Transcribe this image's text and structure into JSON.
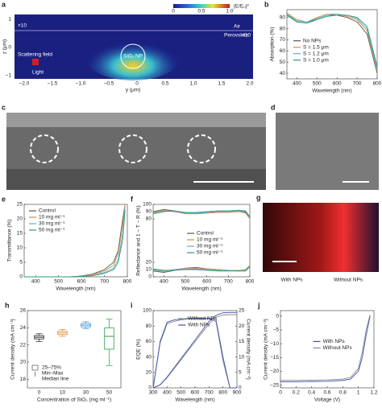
{
  "images": [
    {
      "panel": "a",
      "colorbar_label": "|E/E₀|²",
      "colorbar_ticks": [
        "0",
        "0.5",
        "1.0"
      ],
      "labels": [
        "Air",
        "Perovskite",
        "×10",
        "×10",
        "SiO₂ NP",
        "Scattering field",
        "Light"
      ],
      "xlabel": "y (μm)",
      "ylabel": "z (μm)",
      "xticks": [
        "−2.0",
        "−1.5",
        "−1.0",
        "−0.5",
        "0",
        "0.5",
        "1.0",
        "1.5",
        "2.0"
      ],
      "yticks": [
        "1",
        "0",
        "−1"
      ]
    },
    {
      "panel": "c"
    },
    {
      "panel": "d"
    },
    {
      "panel": "g",
      "labels": [
        "With NPs",
        "Without NPs"
      ]
    }
  ],
  "chart_data": [
    {
      "type": "line",
      "panel": "b",
      "xlabel": "Wavelength (nm)",
      "ylabel": "Absorption (%)",
      "x": [
        350,
        400,
        450,
        500,
        550,
        600,
        650,
        700,
        750,
        800
      ],
      "xlim": [
        350,
        800
      ],
      "xticks": [
        400,
        500,
        600,
        700,
        800
      ],
      "ylim": [
        35,
        97
      ],
      "yticks": [
        40,
        50,
        60,
        70,
        80,
        90
      ],
      "legend": "center-left",
      "series": [
        {
          "name": "No NPs",
          "color": "#555555",
          "values": [
            93,
            86,
            85,
            89,
            92,
            92,
            90,
            86,
            75,
            40
          ]
        },
        {
          "name": "S = 1.5 μm",
          "color": "#e08a3c",
          "values": [
            94,
            88,
            86,
            90,
            93,
            93,
            91,
            88,
            78,
            42
          ]
        },
        {
          "name": "S = 1.2 μm",
          "color": "#5ab0d8",
          "values": [
            93,
            87,
            86,
            89,
            92,
            93,
            92,
            89,
            80,
            44
          ]
        },
        {
          "name": "S = 1.0 μm",
          "color": "#2a9d6f",
          "values": [
            92,
            86,
            85,
            88,
            91,
            92,
            92,
            90,
            82,
            46
          ]
        }
      ]
    },
    {
      "type": "line",
      "panel": "e",
      "xlabel": "Wavelength (nm)",
      "ylabel": "Transmittance (%)",
      "x": [
        350,
        450,
        550,
        600,
        650,
        700,
        740,
        760,
        780,
        790
      ],
      "xlim": [
        350,
        800
      ],
      "xticks": [
        400,
        500,
        600,
        700,
        800
      ],
      "ylim": [
        0,
        25
      ],
      "yticks": [
        0,
        5,
        10,
        15,
        20,
        25
      ],
      "legend": "top-left",
      "series": [
        {
          "name": "Control",
          "color": "#555555",
          "values": [
            0,
            0,
            0,
            0.3,
            1,
            2.5,
            5,
            9,
            20,
            25
          ]
        },
        {
          "name": "10 mg ml⁻¹",
          "color": "#e08a3c",
          "values": [
            0,
            0,
            0,
            0.2,
            0.8,
            2,
            4,
            8,
            18,
            25
          ]
        },
        {
          "name": "30 mg ml⁻¹",
          "color": "#5ab0d8",
          "values": [
            0,
            0,
            0,
            0.1,
            0.5,
            1.5,
            3,
            6,
            15,
            24
          ]
        },
        {
          "name": "50 mg ml⁻¹",
          "color": "#2a9d6f",
          "values": [
            0,
            0,
            0,
            0.1,
            0.4,
            1.2,
            2.5,
            5,
            13,
            23
          ]
        }
      ]
    },
    {
      "type": "line",
      "panel": "f",
      "xlabel": "Wavelength (nm)",
      "ylabel": "Reflectance and 1 − T − R (%)",
      "x": [
        350,
        400,
        450,
        500,
        550,
        600,
        650,
        700,
        750,
        780,
        800
      ],
      "xlim": [
        350,
        800
      ],
      "xticks": [
        400,
        500,
        600,
        700,
        800
      ],
      "ylim": [
        0,
        100
      ],
      "yticks": [
        0,
        10,
        20,
        80,
        90,
        100
      ],
      "legend": "center",
      "series": [
        {
          "name": "Control",
          "color": "#555555",
          "values": [
            90,
            93,
            91,
            88,
            87,
            88,
            89,
            90,
            91,
            89,
            82
          ],
          "reflectance": [
            8,
            6,
            9,
            12,
            13,
            11,
            10,
            9,
            8,
            9,
            15
          ]
        },
        {
          "name": "10 mg ml⁻¹",
          "color": "#e08a3c",
          "values": [
            89,
            92,
            90,
            87,
            87,
            88,
            89,
            89,
            90,
            88,
            80
          ],
          "reflectance": [
            9,
            7,
            10,
            12,
            12,
            11,
            10,
            9,
            9,
            10,
            16
          ]
        },
        {
          "name": "30 mg ml⁻¹",
          "color": "#5ab0d8",
          "values": [
            88,
            91,
            90,
            88,
            88,
            89,
            90,
            90,
            91,
            90,
            81
          ],
          "reflectance": [
            10,
            8,
            10,
            11,
            11,
            10,
            9,
            9,
            8,
            9,
            15
          ]
        },
        {
          "name": "50 mg ml⁻¹",
          "color": "#2a9d6f",
          "values": [
            87,
            90,
            91,
            89,
            89,
            90,
            91,
            91,
            92,
            91,
            83
          ],
          "reflectance": [
            11,
            9,
            9,
            10,
            10,
            9,
            8,
            8,
            8,
            8,
            14
          ]
        }
      ]
    },
    {
      "type": "box",
      "panel": "h",
      "xlabel": "Concentration of SiO₂ (mg ml⁻¹)",
      "ylabel": "Current density (mA cm⁻²)",
      "categories": [
        "0",
        "10",
        "30",
        "50"
      ],
      "ylim": [
        17,
        26
      ],
      "yticks": [
        18,
        20,
        22,
        24,
        26
      ],
      "legend": [
        "25–75%",
        "Min–Max",
        "Median line"
      ],
      "series": [
        {
          "color": "#222222",
          "min": [
            22.4,
            23.0,
            23.9,
            19.6
          ],
          "q1": [
            22.7,
            23.2,
            24.1,
            21.5
          ],
          "median": [
            22.9,
            23.4,
            24.3,
            23.0
          ],
          "q3": [
            23.1,
            23.6,
            24.5,
            24.0
          ],
          "max": [
            23.3,
            23.8,
            24.7,
            25.0
          ]
        }
      ],
      "colors": [
        "#222222",
        "#e08a3c",
        "#3b8fd6",
        "#2a9d3f"
      ]
    },
    {
      "type": "line",
      "panel": "i",
      "xlabel": "Wavelength (nm)",
      "ylabel": "EQE (%)",
      "y2label": "Current density (mA cm⁻²)",
      "x": [
        300,
        350,
        400,
        450,
        500,
        550,
        600,
        650,
        700,
        750,
        800,
        850,
        900
      ],
      "xlim": [
        300,
        900
      ],
      "xticks": [
        300,
        400,
        500,
        600,
        700,
        800,
        900
      ],
      "ylim": [
        0,
        100
      ],
      "yticks": [
        0,
        20,
        40,
        60,
        80,
        100
      ],
      "y2lim": [
        0,
        25
      ],
      "y2ticks": [
        0,
        5,
        10,
        15,
        20,
        25
      ],
      "legend": "top-center",
      "series": [
        {
          "name": "Without NPs",
          "color": "#888888",
          "values": [
            0,
            58,
            83,
            86,
            88,
            89,
            89,
            89,
            89,
            86,
            35,
            0,
            0
          ]
        },
        {
          "name": "With NPs",
          "color": "#4050b0",
          "values": [
            0,
            60,
            85,
            88,
            89,
            90,
            90,
            90,
            90,
            88,
            40,
            0,
            0
          ]
        },
        {
          "color": "#888888",
          "axis": "y2",
          "values": [
            0,
            0.9,
            3.3,
            6.2,
            9.1,
            12,
            14.9,
            17.8,
            20.7,
            22.9,
            23.6,
            23.7,
            23.7
          ]
        },
        {
          "color": "#4050b0",
          "axis": "y2",
          "values": [
            0,
            1,
            3.5,
            6.5,
            9.5,
            12.5,
            15.5,
            18.5,
            21.5,
            23.5,
            24.3,
            24.4,
            24.4
          ]
        }
      ]
    },
    {
      "type": "line",
      "panel": "j",
      "xlabel": "Voltage (V)",
      "ylabel": "Current density (mA cm⁻²)",
      "x": [
        0,
        0.2,
        0.4,
        0.6,
        0.8,
        0.9,
        1.0,
        1.05,
        1.1,
        1.15
      ],
      "xlim": [
        0,
        1.2
      ],
      "xticks": [
        0,
        0.2,
        0.4,
        0.6,
        0.8,
        1.0,
        {
          "value": 1.2,
          "label": "1.2"
        }
      ],
      "ylim": [
        -26,
        2
      ],
      "yticks": [
        0,
        {
          "value": -5,
          "label": "−5"
        },
        {
          "value": -10,
          "label": "−10"
        },
        {
          "value": -15,
          "label": "−15"
        },
        {
          "value": -20,
          "label": "−20"
        },
        {
          "value": -25,
          "label": "−25"
        }
      ],
      "legend": "center",
      "series": [
        {
          "name": "With NPs",
          "color": "#4050b0",
          "values": [
            -23.8,
            -23.8,
            -23.7,
            -23.6,
            -23.3,
            -22.8,
            -20,
            -15,
            -7,
            0
          ]
        },
        {
          "name": "Without NPs",
          "color": "#888888",
          "values": [
            -23.3,
            -23.3,
            -23.2,
            -23.1,
            -22.8,
            -22.2,
            -19,
            -13,
            -5,
            0.5
          ]
        }
      ]
    }
  ]
}
